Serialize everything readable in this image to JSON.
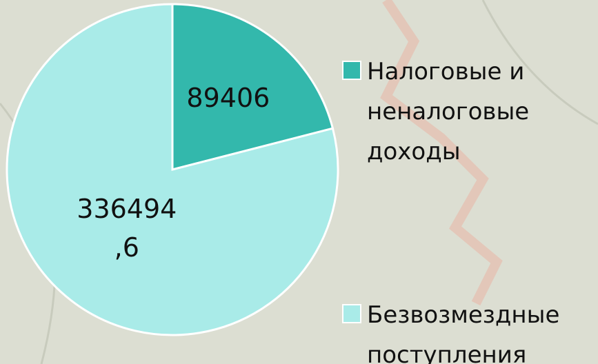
{
  "chart_data": {
    "type": "pie",
    "categories": [
      "Налоговые и неналоговые доходы",
      "Безвозмездные поступления"
    ],
    "values": [
      89406,
      336494.6
    ],
    "value_labels": [
      "89406",
      "336494,6"
    ],
    "colors": [
      "#33b8ac",
      "#a9ebe8"
    ],
    "legend": "right"
  }
}
